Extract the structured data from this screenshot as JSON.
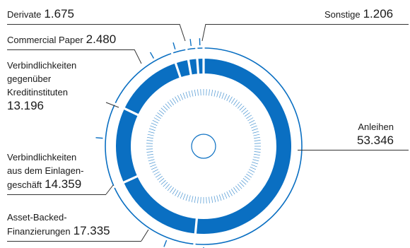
{
  "chart_data": {
    "type": "donut",
    "total_center": "",
    "series": [
      {
        "name": "Anleihen",
        "value": 53.346,
        "label": "53.346"
      },
      {
        "name": "Asset-Backed-Finanzierungen",
        "value": 17.335,
        "label": "17.335"
      },
      {
        "name": "Verbindlichkeiten aus dem Einlagengeschäft",
        "value": 14.359,
        "label": "14.359"
      },
      {
        "name": "Verbindlichkeiten gegenüber Kreditinstituten",
        "value": 13.196,
        "label": "13.196"
      },
      {
        "name": "Commercial Paper",
        "value": 2.48,
        "label": "2.480"
      },
      {
        "name": "Derivate",
        "value": 1.675,
        "label": "1.675"
      },
      {
        "name": "Sonstige",
        "value": 1.206,
        "label": "1.206"
      }
    ],
    "colors": {
      "segment": "#0a6fc2",
      "line": "#0a6fc2",
      "text": "#1a1a1a"
    }
  },
  "labels": {
    "derivate": {
      "name": "Derivate",
      "value": "1.675"
    },
    "sonstige": {
      "name": "Sonstige",
      "value": "1.206"
    },
    "commercial": {
      "name": "Commercial Paper",
      "value": "2.480"
    },
    "kredit": {
      "line1": "Verbindlichkeiten",
      "line2": "gegenüber",
      "line3": "Kreditinstituten",
      "value": "13.196"
    },
    "anleihen": {
      "name": "Anleihen",
      "value": "53.346"
    },
    "einlagen": {
      "line1": "Verbindlichkeiten",
      "line2": "aus dem Einlagen-",
      "line3": "geschäft",
      "value": "14.359"
    },
    "abf": {
      "line1": "Asset-Backed-",
      "line2": "Finanzierungen",
      "value": "17.335"
    }
  }
}
